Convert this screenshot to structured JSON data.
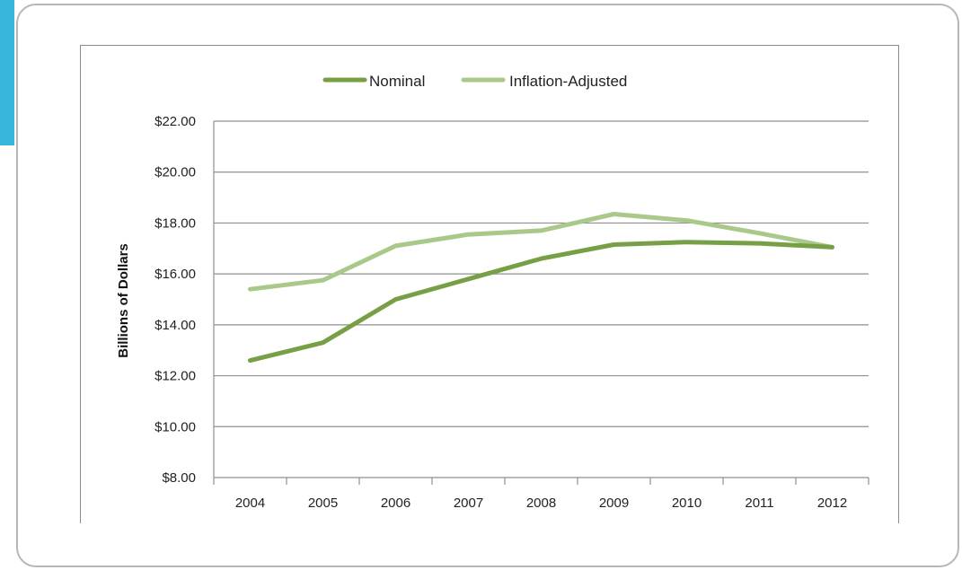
{
  "chart_data": {
    "type": "line",
    "title": "",
    "xlabel": "",
    "ylabel": "Billions of Dollars",
    "categories": [
      "2004",
      "2005",
      "2006",
      "2007",
      "2008",
      "2009",
      "2010",
      "2011",
      "2012"
    ],
    "y_tick_labels": [
      "$8.00",
      "$10.00",
      "$12.00",
      "$14.00",
      "$16.00",
      "$18.00",
      "$20.00",
      "$22.00"
    ],
    "ylim": [
      8,
      22
    ],
    "y_step": 2,
    "grid": true,
    "legend_position": "top",
    "series": [
      {
        "name": "Nominal",
        "color": "#77a046",
        "values": [
          12.6,
          13.3,
          15.0,
          15.8,
          16.6,
          17.15,
          17.25,
          17.2,
          17.05
        ]
      },
      {
        "name": "Inflation-Adjusted",
        "color": "#a9c98a",
        "values": [
          15.4,
          15.75,
          17.1,
          17.55,
          17.7,
          18.35,
          18.1,
          17.6,
          17.05
        ]
      }
    ]
  }
}
